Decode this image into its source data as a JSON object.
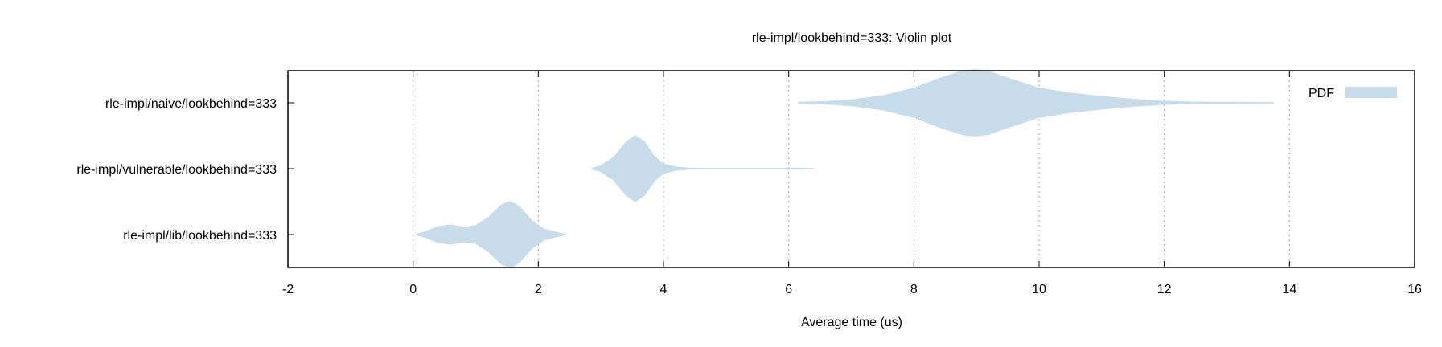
{
  "chart_data": {
    "type": "violin",
    "title": "rle-impl/lookbehind=333: Violin plot",
    "xlabel": "Average time (us)",
    "ylabel": "",
    "xlim": [
      -2,
      16
    ],
    "x_ticks": [
      -2,
      0,
      2,
      4,
      6,
      8,
      10,
      12,
      14,
      16
    ],
    "x_tick_labels": [
      "-2",
      "0",
      "2",
      "4",
      "6",
      "8",
      "10",
      "12",
      "14",
      "16"
    ],
    "grid": "vertical dotted",
    "legend": {
      "position": "top-right",
      "entries": [
        "PDF"
      ]
    },
    "series_color": "#c6dcea",
    "categories": [
      "rle-impl/naive/lookbehind=333",
      "rle-impl/vulnerable/lookbehind=333",
      "rle-impl/lib/lookbehind=333"
    ],
    "series": [
      {
        "category": "rle-impl/naive/lookbehind=333",
        "density": [
          [
            6.15,
            0.03
          ],
          [
            6.6,
            0.05
          ],
          [
            7.0,
            0.1
          ],
          [
            7.5,
            0.22
          ],
          [
            8.0,
            0.45
          ],
          [
            8.5,
            0.8
          ],
          [
            8.8,
            0.97
          ],
          [
            9.0,
            1.0
          ],
          [
            9.2,
            0.95
          ],
          [
            9.5,
            0.75
          ],
          [
            10.0,
            0.45
          ],
          [
            10.5,
            0.3
          ],
          [
            11.0,
            0.2
          ],
          [
            11.5,
            0.12
          ],
          [
            12.0,
            0.06
          ],
          [
            12.5,
            0.035
          ],
          [
            13.0,
            0.03
          ],
          [
            13.3,
            0.025
          ],
          [
            13.75,
            0.02
          ]
        ]
      },
      {
        "category": "rle-impl/vulnerable/lookbehind=333",
        "density": [
          [
            2.85,
            0.02
          ],
          [
            3.0,
            0.1
          ],
          [
            3.2,
            0.35
          ],
          [
            3.4,
            0.8
          ],
          [
            3.55,
            1.0
          ],
          [
            3.7,
            0.8
          ],
          [
            3.85,
            0.4
          ],
          [
            4.0,
            0.15
          ],
          [
            4.2,
            0.06
          ],
          [
            4.4,
            0.03
          ],
          [
            4.7,
            0.02
          ],
          [
            5.9,
            0.02
          ],
          [
            6.1,
            0.03
          ],
          [
            6.4,
            0.02
          ]
        ]
      },
      {
        "category": "rle-impl/lib/lookbehind=333",
        "density": [
          [
            0.05,
            0.02
          ],
          [
            0.2,
            0.1
          ],
          [
            0.4,
            0.25
          ],
          [
            0.6,
            0.3
          ],
          [
            0.8,
            0.23
          ],
          [
            1.0,
            0.28
          ],
          [
            1.2,
            0.52
          ],
          [
            1.4,
            0.88
          ],
          [
            1.55,
            1.0
          ],
          [
            1.7,
            0.85
          ],
          [
            1.9,
            0.42
          ],
          [
            2.1,
            0.17
          ],
          [
            2.3,
            0.07
          ],
          [
            2.45,
            0.02
          ]
        ]
      }
    ]
  }
}
